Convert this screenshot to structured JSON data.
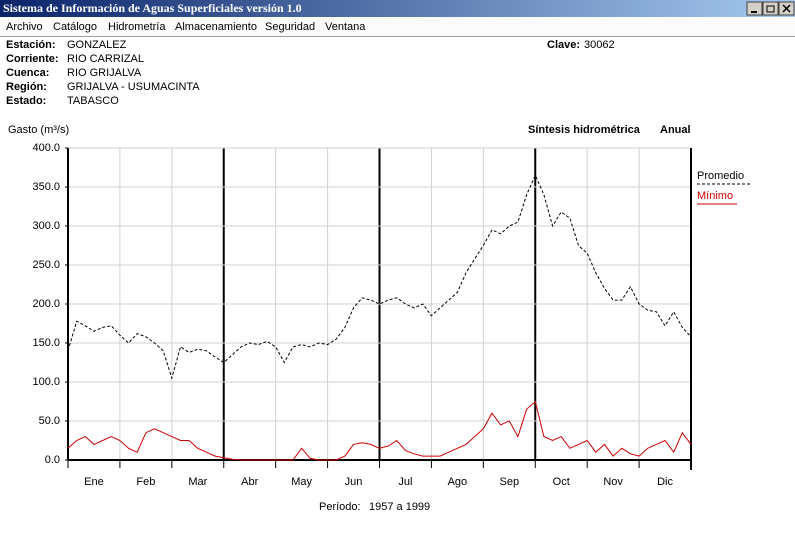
{
  "window": {
    "title": "Sistema de Información de Aguas Superficiales  versión 1.0"
  },
  "menu": [
    "Archivo",
    "Catálogo",
    "Hidrometría",
    "Almacenamiento",
    "Seguridad",
    "Ventana"
  ],
  "info": {
    "fields": [
      {
        "label": "Estación:",
        "value": "GONZALEZ"
      },
      {
        "label": "Corriente:",
        "value": "RIO CARRIZAL"
      },
      {
        "label": "Cuenca:",
        "value": "RIO GRIJALVA"
      },
      {
        "label": "Región:",
        "value": "GRIJALVA - USUMACINTA"
      },
      {
        "label": "Estado:",
        "value": "TABASCO"
      }
    ],
    "clave": {
      "label": "Clave:",
      "value": "30062"
    }
  },
  "chart_data": {
    "type": "line",
    "ylabel": "Gasto (m³/s)",
    "title": "Síntesis hidrométrica",
    "subtitle": "Anual",
    "x_labels": [
      "Ene",
      "Feb",
      "Mar",
      "Abr",
      "May",
      "Jun",
      "Jul",
      "Ago",
      "Sep",
      "Oct",
      "Nov",
      "Dic"
    ],
    "ylim": [
      0,
      400
    ],
    "yticks": [
      {
        "value": 0,
        "label": "0.0"
      },
      {
        "value": 50,
        "label": "50.0"
      },
      {
        "value": 100,
        "label": "100.0"
      },
      {
        "value": 150,
        "label": "150.0"
      },
      {
        "value": 200,
        "label": "200.0"
      },
      {
        "value": 250,
        "label": "250.0"
      },
      {
        "value": 300,
        "label": "300.0"
      },
      {
        "value": 350,
        "label": "350.0"
      },
      {
        "value": 400,
        "label": "400.0"
      }
    ],
    "grid": true,
    "series": [
      {
        "name": "Promedio",
        "color": "#000000",
        "dashed": true,
        "values": [
          140,
          178,
          172,
          165,
          170,
          172,
          160,
          150,
          162,
          158,
          150,
          140,
          105,
          145,
          138,
          142,
          140,
          132,
          125,
          135,
          145,
          150,
          148,
          152,
          145,
          125,
          145,
          148,
          145,
          150,
          148,
          155,
          170,
          195,
          208,
          205,
          200,
          205,
          208,
          200,
          195,
          200,
          185,
          195,
          205,
          215,
          240,
          258,
          275,
          295,
          290,
          300,
          305,
          340,
          365,
          340,
          300,
          318,
          310,
          275,
          265,
          240,
          220,
          205,
          205,
          222,
          200,
          192,
          190,
          172,
          190,
          170,
          158
        ]
      },
      {
        "name": "Mínimo",
        "color": "#cc0000",
        "dashed": false,
        "values": [
          15,
          25,
          30,
          20,
          25,
          30,
          25,
          15,
          10,
          35,
          40,
          35,
          30,
          25,
          25,
          15,
          10,
          5,
          3,
          1,
          0,
          0,
          0,
          0,
          0,
          0,
          0,
          15,
          2,
          0,
          0,
          0,
          5,
          20,
          22,
          20,
          15,
          18,
          25,
          12,
          8,
          5,
          5,
          5,
          10,
          15,
          20,
          30,
          40,
          60,
          45,
          50,
          30,
          65,
          75,
          30,
          25,
          30,
          15,
          20,
          25,
          10,
          20,
          5,
          15,
          8,
          5,
          15,
          20,
          25,
          10,
          35,
          20
        ]
      }
    ],
    "period": {
      "label": "Período:",
      "value": "1957 a 1999"
    }
  }
}
